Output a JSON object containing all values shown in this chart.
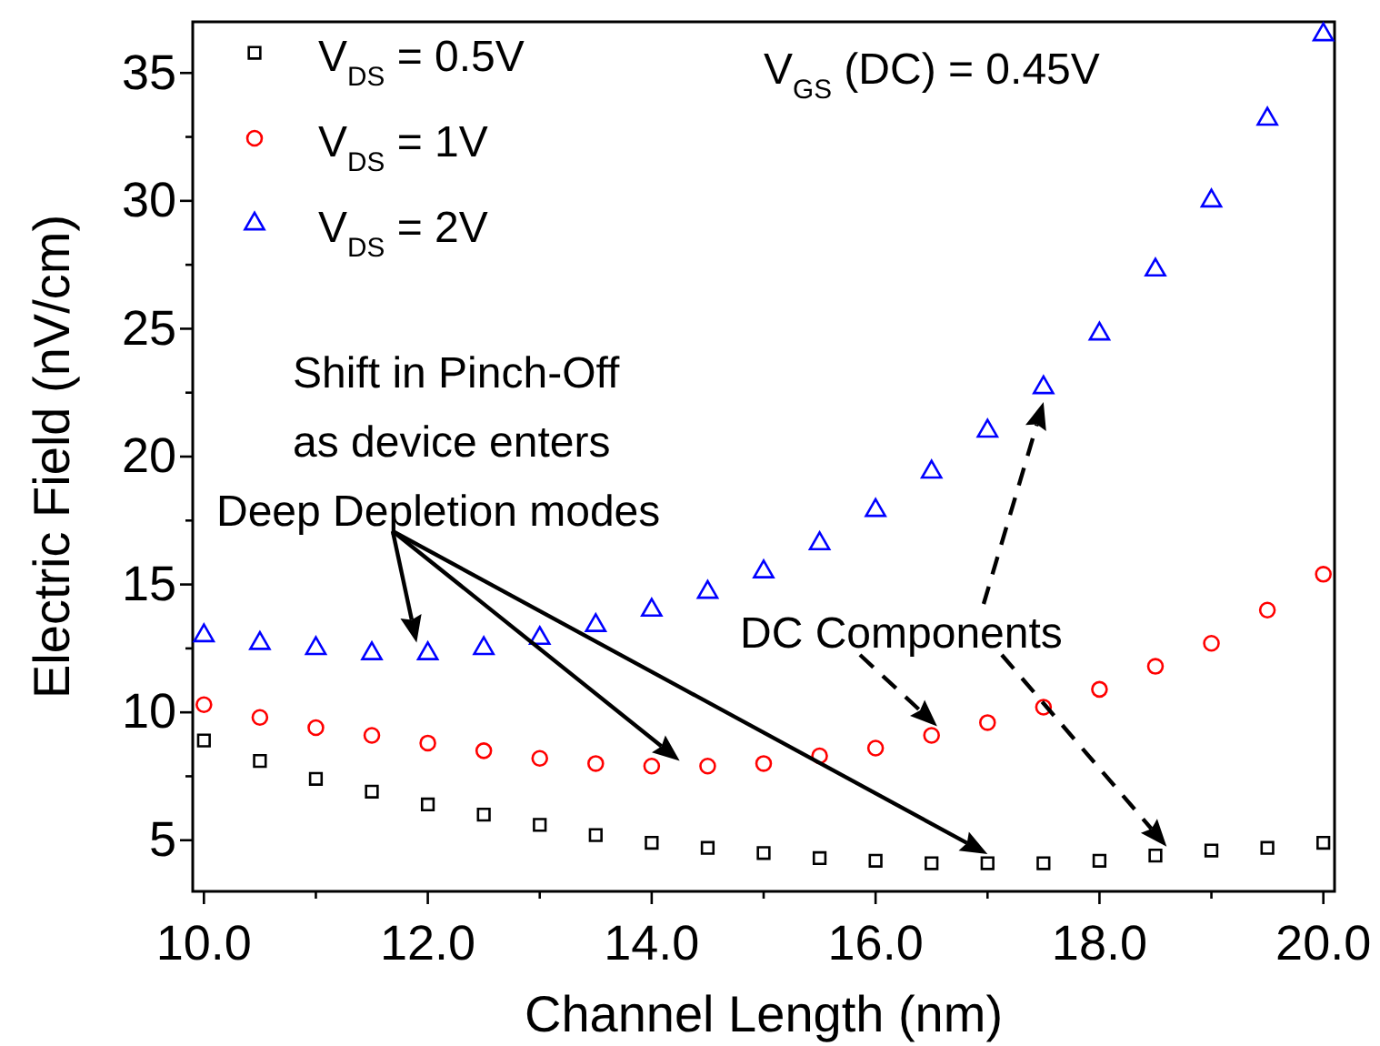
{
  "chart_data": {
    "type": "scatter",
    "xlabel": "Channel Length (nm)",
    "ylabel": "Electric Field (nV/cm)",
    "xlim": [
      9.9,
      20.1
    ],
    "ylim": [
      3,
      37
    ],
    "xticks": [
      {
        "value": 10,
        "label": "10.0"
      },
      {
        "value": 11,
        "label": null
      },
      {
        "value": 12,
        "label": "12.0"
      },
      {
        "value": 13,
        "label": null
      },
      {
        "value": 14,
        "label": "14.0"
      },
      {
        "value": 15,
        "label": null
      },
      {
        "value": 16,
        "label": "16.0"
      },
      {
        "value": 17,
        "label": null
      },
      {
        "value": 18,
        "label": "18.0"
      },
      {
        "value": 19,
        "label": null
      },
      {
        "value": 20,
        "label": "20.0"
      }
    ],
    "yticks": [
      5,
      {
        "value": 7.5,
        "label": null
      },
      10,
      {
        "value": 12.5,
        "label": null
      },
      15,
      {
        "value": 17.5,
        "label": null
      },
      20,
      {
        "value": 22.5,
        "label": null
      },
      25,
      {
        "value": 27.5,
        "label": null
      },
      30,
      {
        "value": 32.5,
        "label": null
      },
      35
    ],
    "x": [
      10,
      10.5,
      11,
      11.5,
      12,
      12.5,
      13,
      13.5,
      14,
      14.5,
      15,
      15.5,
      16,
      16.5,
      17,
      17.5,
      18,
      18.5,
      19,
      19.5,
      20
    ],
    "series": [
      {
        "name": "V$_{DS}$ = 0.5V",
        "color": "#000000",
        "marker": "square",
        "values": [
          8.9,
          8.1,
          7.4,
          6.9,
          6.4,
          6.0,
          5.6,
          5.2,
          4.9,
          4.7,
          4.5,
          4.3,
          4.2,
          4.1,
          4.1,
          4.1,
          4.2,
          4.4,
          4.6,
          4.7,
          4.9
        ]
      },
      {
        "name": "V$_{DS}$ = 1V",
        "color": "#ff0000",
        "marker": "circle",
        "values": [
          10.3,
          9.8,
          9.4,
          9.1,
          8.8,
          8.5,
          8.2,
          8.0,
          7.9,
          7.9,
          8.0,
          8.3,
          8.6,
          9.1,
          9.6,
          10.2,
          10.9,
          11.8,
          12.7,
          14.0,
          15.4
        ]
      },
      {
        "name": "V$_{DS}$ = 2V",
        "color": "#0000ff",
        "marker": "triangle",
        "values": [
          13.0,
          12.7,
          12.5,
          12.3,
          12.3,
          12.5,
          12.9,
          13.4,
          14.0,
          14.7,
          15.5,
          16.6,
          17.9,
          19.4,
          21.0,
          22.7,
          24.8,
          27.3,
          30.0,
          33.2,
          36.5
        ]
      }
    ],
    "legend": "top left",
    "annotations": [
      "V$_{GS}$ (DC) = 0.45V",
      "Shift in Pinch-Off\nas device enters\nDeep Depletion modes",
      "DC Components"
    ]
  }
}
